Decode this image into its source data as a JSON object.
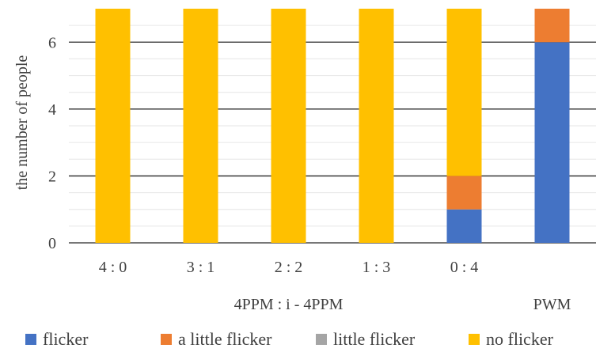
{
  "chart_data": {
    "type": "bar",
    "stacked": true,
    "ylabel": "the number of people",
    "ylim": [
      0,
      7
    ],
    "yticks": [
      0,
      2,
      4,
      6
    ],
    "grid": true,
    "legend_position": "bottom",
    "categories": [
      "4 : 0",
      "3 : 1",
      "2 : 2",
      "1 : 3",
      "0 : 4",
      ""
    ],
    "group_labels": [
      {
        "label": "4PPM : i - 4PPM",
        "span": [
          0,
          4
        ]
      },
      {
        "label": "PWM",
        "span": [
          5,
          5
        ]
      }
    ],
    "series": [
      {
        "name": "flicker",
        "color": "#4472C4",
        "values": [
          0,
          0,
          0,
          0,
          1,
          6
        ]
      },
      {
        "name": "a little flicker",
        "color": "#ED7D31",
        "values": [
          0,
          0,
          0,
          0,
          1,
          1
        ]
      },
      {
        "name": "little flicker",
        "color": "#A5A5A5",
        "values": [
          0,
          0,
          0,
          0,
          0,
          0
        ]
      },
      {
        "name": "no flicker",
        "color": "#FFC000",
        "values": [
          7,
          7,
          7,
          7,
          5,
          0
        ]
      }
    ]
  }
}
